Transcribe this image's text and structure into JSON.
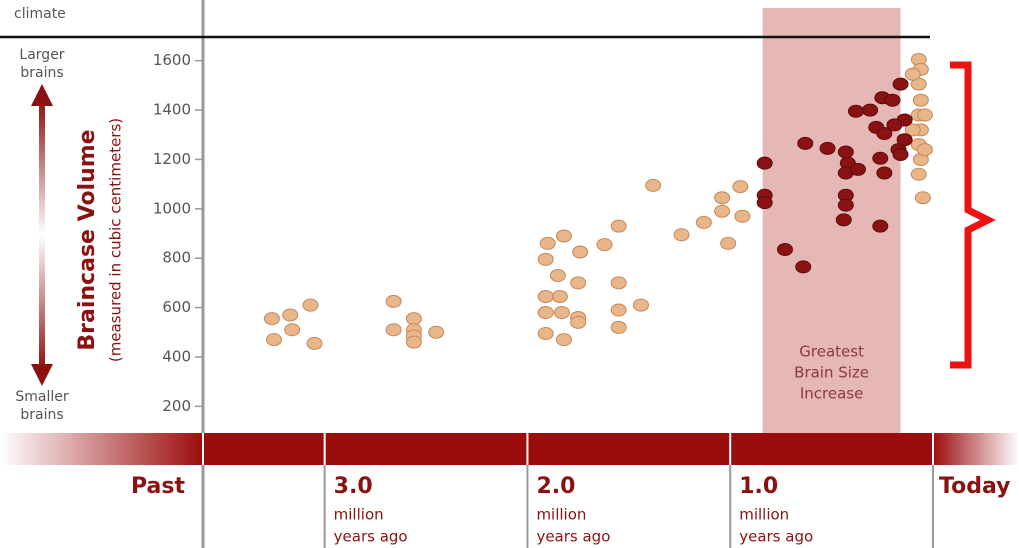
{
  "chart_data": {
    "type": "scatter",
    "top_label": "climate",
    "y_title": "Braincase Volume",
    "y_subtitle": "(measured in cubic centimeters)",
    "y_top_label": [
      "Larger",
      "brains"
    ],
    "y_bottom_label": [
      "Smaller",
      "brains"
    ],
    "x_start_label": "Past",
    "x_end_label": "Today",
    "x_tick_sublabel": [
      "million",
      "years ago"
    ],
    "xlim": [
      3.6,
      0
    ],
    "xticks": [
      {
        "value": 3,
        "label": "3.0"
      },
      {
        "value": 2,
        "label": "2.0"
      },
      {
        "value": 1,
        "label": "1.0"
      }
    ],
    "ylim": [
      100,
      1700
    ],
    "yticks": [
      200,
      400,
      600,
      800,
      1000,
      1200,
      1400,
      1600
    ],
    "highlight": {
      "x": [
        0.84,
        0.16
      ],
      "label": [
        "Greatest",
        "Brain Size",
        "Increase"
      ],
      "color": "#e6b8b5"
    },
    "series": [
      {
        "color": "#e9b68a",
        "x": [
          3.26,
          3.17,
          3.07,
          3.25,
          3.16,
          3.05,
          2.66,
          2.56,
          2.66,
          2.56,
          2.56,
          2.56,
          2.45,
          1.91,
          1.82,
          1.91,
          1.83,
          1.91,
          1.84,
          1.91,
          1.85,
          1.9,
          1.82,
          1.74,
          1.75,
          1.75,
          1.75,
          1.62,
          1.55,
          1.55,
          1.55,
          1.55,
          1.44,
          1.38,
          1.24,
          1.13,
          1.04,
          1.04,
          1.01,
          0.95,
          0.94,
          0.07,
          0.06,
          0.07,
          0.06,
          0.07,
          0.06,
          0.07,
          0.06,
          0.07,
          0.05,
          0.1,
          0.1,
          0.04,
          0.04
        ],
        "values": [
          555,
          570,
          610,
          470,
          510,
          455,
          625,
          555,
          510,
          510,
          485,
          460,
          500,
          495,
          470,
          580,
          580,
          645,
          645,
          795,
          730,
          860,
          890,
          825,
          700,
          560,
          540,
          855,
          930,
          700,
          590,
          520,
          610,
          1095,
          895,
          945,
          990,
          1045,
          860,
          1090,
          970,
          1605,
          1565,
          1505,
          1440,
          1380,
          1320,
          1260,
          1200,
          1140,
          1045,
          1320,
          1545,
          1380,
          1240
        ]
      },
      {
        "color": "#8b1212",
        "x": [
          0.83,
          0.83,
          0.83,
          0.73,
          0.64,
          0.63,
          0.52,
          0.43,
          0.42,
          0.43,
          0.37,
          0.43,
          0.43,
          0.44,
          0.26,
          0.24,
          0.38,
          0.31,
          0.25,
          0.2,
          0.28,
          0.24,
          0.26,
          0.17,
          0.16,
          0.14,
          0.14,
          0.16,
          0.19
        ],
        "values": [
          1185,
          1055,
          1025,
          835,
          765,
          1265,
          1245,
          1230,
          1185,
          1145,
          1160,
          1055,
          1015,
          955,
          930,
          1145,
          1395,
          1400,
          1450,
          1440,
          1330,
          1305,
          1205,
          1240,
          1505,
          1360,
          1280,
          1220,
          1340
        ]
      }
    ]
  }
}
